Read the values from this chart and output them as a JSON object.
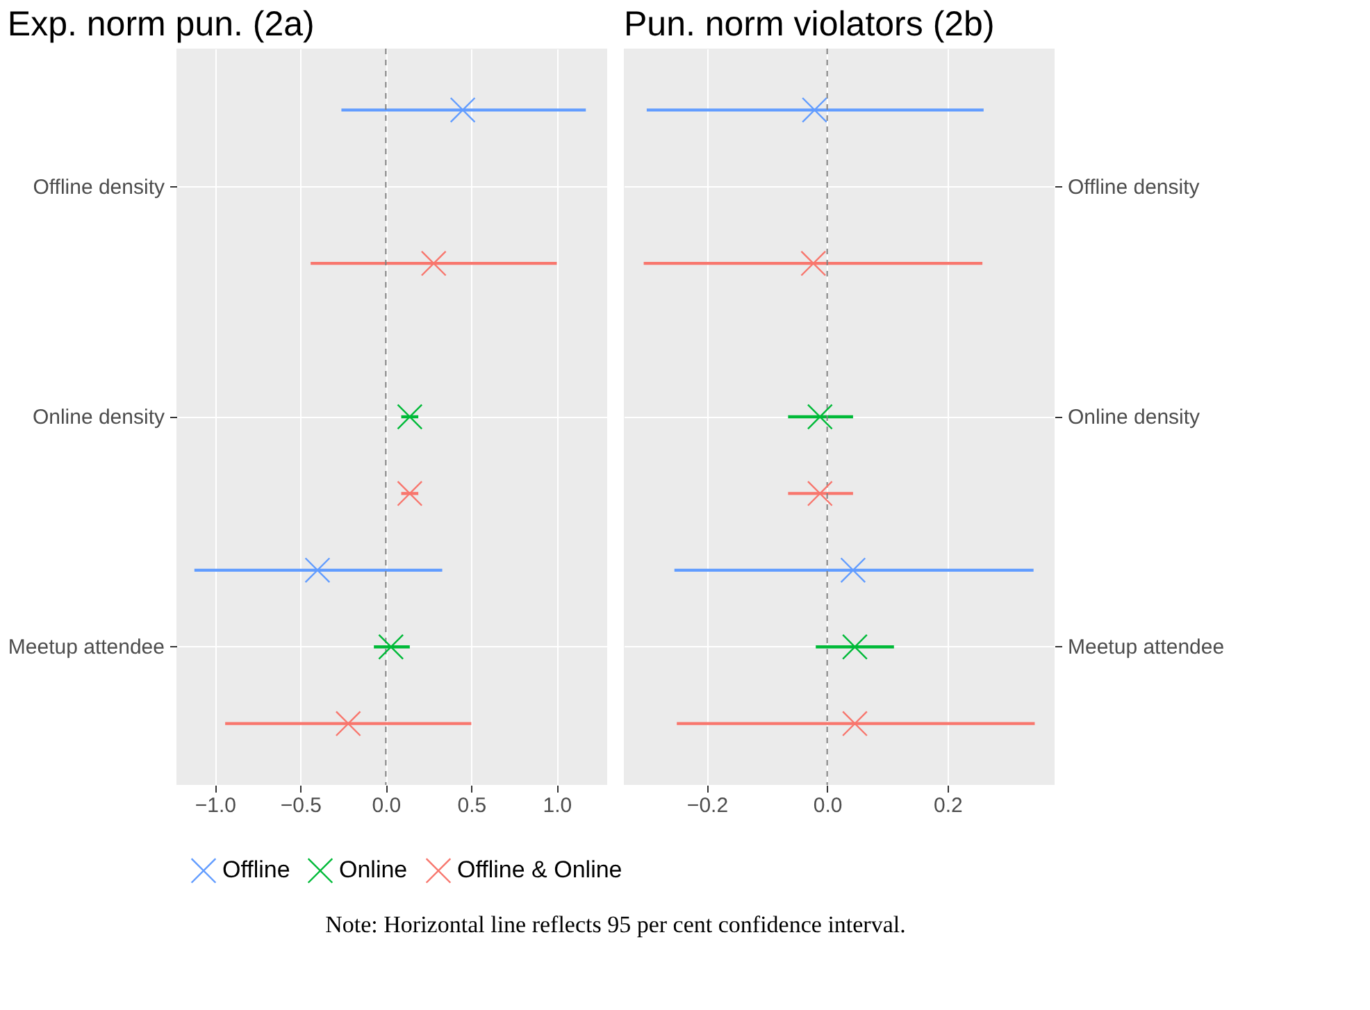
{
  "chart_data": [
    {
      "type": "scatter",
      "orientation": "horizontal",
      "title": "Exp. norm pun. (2a)",
      "categories": [
        "Offline density",
        "Online density",
        "Meetup attendee"
      ],
      "series": [
        {
          "name": "Offline",
          "color": "#619cff",
          "values": [
            0.45,
            null,
            -0.4
          ],
          "errors": [
            [
              -0.26,
              1.17
            ],
            null,
            [
              -1.12,
              0.33
            ]
          ]
        },
        {
          "name": "Online",
          "color": "#00ba38",
          "values": [
            null,
            0.14,
            0.03
          ],
          "errors": [
            null,
            [
              0.09,
              0.19
            ],
            [
              -0.07,
              0.14
            ]
          ]
        },
        {
          "name": "Offline & Online",
          "color": "#f8766d",
          "values": [
            0.28,
            0.14,
            -0.22
          ],
          "errors": [
            [
              -0.44,
              1.0
            ],
            [
              0.09,
              0.19
            ],
            [
              -0.94,
              0.5
            ]
          ]
        }
      ],
      "xlim": [
        -1.225,
        1.295
      ],
      "xticks": [
        {
          "value": -1.0,
          "label": "−1.0"
        },
        {
          "value": -0.5,
          "label": "−0.5"
        },
        {
          "value": 0.0,
          "label": "0.0"
        },
        {
          "value": 0.5,
          "label": "0.5"
        },
        {
          "value": 1.0,
          "label": "1.0"
        }
      ],
      "ref_lines": [
        {
          "axis": "x",
          "value": 0,
          "color": "#808080",
          "line_style": "dashed"
        }
      ],
      "marker": "cross",
      "grid": true,
      "legend": "bottom",
      "annotations": [
        "Note: Horizontal line reflects 95 per cent confidence interval."
      ]
    },
    {
      "type": "scatter",
      "orientation": "horizontal",
      "title": "Pun. norm violators (2b)",
      "categories": [
        "Offline density",
        "Online density",
        "Meetup attendee"
      ],
      "series": [
        {
          "name": "Offline",
          "color": "#619cff",
          "values": [
            -0.021,
            null,
            0.043
          ],
          "errors": [
            [
              -0.3,
              0.26
            ],
            null,
            [
              -0.254,
              0.343
            ]
          ]
        },
        {
          "name": "Online",
          "color": "#00ba38",
          "values": [
            null,
            -0.012,
            0.046
          ],
          "errors": [
            null,
            [
              -0.065,
              0.043
            ],
            [
              -0.019,
              0.111
            ]
          ]
        },
        {
          "name": "Offline & Online",
          "color": "#f8766d",
          "values": [
            -0.023,
            -0.012,
            0.046
          ],
          "errors": [
            [
              -0.305,
              0.258
            ],
            [
              -0.065,
              0.043
            ],
            [
              -0.25,
              0.345
            ]
          ]
        }
      ],
      "xlim": [
        -0.338,
        0.378
      ],
      "xticks": [
        {
          "value": -0.2,
          "label": "−0.2"
        },
        {
          "value": 0.0,
          "label": "0.0"
        },
        {
          "value": 0.2,
          "label": "0.2"
        }
      ],
      "ref_lines": [
        {
          "axis": "x",
          "value": 0,
          "color": "#808080",
          "line_style": "dashed"
        }
      ],
      "marker": "cross",
      "grid": true,
      "legend": "bottom"
    }
  ]
}
